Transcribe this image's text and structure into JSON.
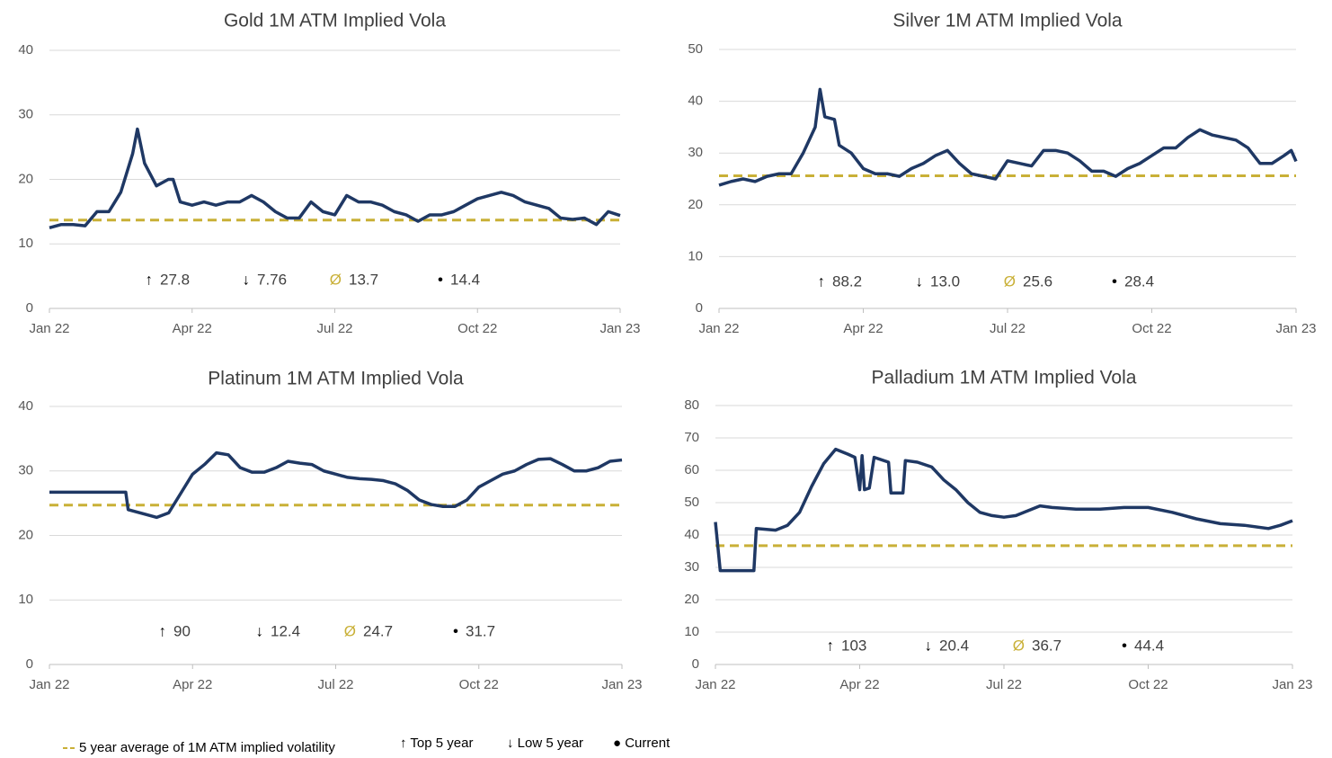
{
  "chart_data": [
    {
      "type": "line",
      "title": "Gold 1M ATM Implied Vola",
      "color": "#1f3864",
      "average_color": "#c9b037",
      "xlim": [
        0,
        12
      ],
      "xticks": [
        {
          "value": 0,
          "label": "Jan 22"
        },
        {
          "value": 3,
          "label": "Apr 22"
        },
        {
          "value": 6,
          "label": "Jul 22"
        },
        {
          "value": 9,
          "label": "Oct 22"
        },
        {
          "value": 12,
          "label": "Jan 23"
        }
      ],
      "ylim": [
        0,
        40
      ],
      "yticks": [
        0,
        10,
        20,
        30,
        40
      ],
      "grid": true,
      "x": [
        0,
        0.25,
        0.5,
        0.75,
        1,
        1.25,
        1.5,
        1.75,
        1.85,
        2,
        2.25,
        2.5,
        2.6,
        2.75,
        3,
        3.25,
        3.5,
        3.75,
        4,
        4.25,
        4.5,
        4.75,
        5,
        5.25,
        5.5,
        5.75,
        6,
        6.25,
        6.5,
        6.75,
        7,
        7.25,
        7.5,
        7.75,
        8,
        8.25,
        8.5,
        8.75,
        9,
        9.25,
        9.5,
        9.75,
        10,
        10.25,
        10.5,
        10.75,
        11,
        11.25,
        11.5,
        11.75,
        12
      ],
      "values": [
        12.5,
        13,
        13,
        12.8,
        15,
        15,
        18,
        24,
        27.8,
        22.5,
        19,
        20,
        20,
        16.5,
        16,
        16.5,
        16,
        16.5,
        16.5,
        17.5,
        16.5,
        15,
        14,
        14,
        16.5,
        15,
        14.5,
        17.5,
        16.5,
        16.5,
        16,
        15,
        14.5,
        13.5,
        14.5,
        14.5,
        15,
        16,
        17,
        17.5,
        18,
        17.5,
        16.5,
        16,
        15.5,
        14,
        13.8,
        14,
        13,
        15,
        14.4
      ],
      "stats": [
        27.8,
        7.76,
        13.7,
        14.4
      ],
      "stats_labels": [
        "27.8",
        "7.76",
        "13.7",
        "14.4"
      ]
    },
    {
      "type": "line",
      "title": "Silver 1M ATM Implied Vola",
      "color": "#1f3864",
      "average_color": "#c9b037",
      "xlim": [
        0,
        12
      ],
      "xticks": [
        {
          "value": 0,
          "label": "Jan 22"
        },
        {
          "value": 3,
          "label": "Apr 22"
        },
        {
          "value": 6,
          "label": "Jul 22"
        },
        {
          "value": 9,
          "label": "Oct 22"
        },
        {
          "value": 12,
          "label": "Jan 23"
        }
      ],
      "ylim": [
        0,
        50
      ],
      "yticks": [
        0,
        10,
        20,
        30,
        40,
        50
      ],
      "grid": true,
      "x": [
        0,
        0.25,
        0.5,
        0.75,
        1,
        1.25,
        1.5,
        1.75,
        2,
        2.1,
        2.2,
        2.4,
        2.5,
        2.75,
        3,
        3.25,
        3.5,
        3.75,
        4,
        4.25,
        4.5,
        4.75,
        5,
        5.25,
        5.5,
        5.75,
        6,
        6.25,
        6.5,
        6.75,
        7,
        7.25,
        7.5,
        7.75,
        8,
        8.25,
        8.5,
        8.75,
        9,
        9.25,
        9.5,
        9.75,
        10,
        10.25,
        10.5,
        10.75,
        11,
        11.25,
        11.5,
        11.75,
        11.9,
        12
      ],
      "values": [
        23.8,
        24.5,
        25,
        24.5,
        25.5,
        26,
        26,
        30,
        35,
        42.3,
        37,
        36.5,
        31.5,
        30,
        27,
        26,
        26,
        25.5,
        27,
        28,
        29.5,
        30.5,
        28,
        26,
        25.5,
        25,
        28.5,
        28,
        27.5,
        30.5,
        30.5,
        30,
        28.5,
        26.5,
        26.5,
        25.5,
        27,
        28,
        29.5,
        31,
        31,
        33,
        34.5,
        33.5,
        33,
        32.5,
        31,
        28,
        28,
        29.5,
        30.5,
        28.4
      ],
      "stats": [
        88.2,
        13.0,
        25.6,
        28.4
      ],
      "stats_labels": [
        "88.2",
        "13.0",
        "25.6",
        "28.4"
      ]
    },
    {
      "type": "line",
      "title": "Platinum 1M ATM Implied Vola",
      "color": "#1f3864",
      "average_color": "#c9b037",
      "xlim": [
        0,
        12
      ],
      "xticks": [
        {
          "value": 0,
          "label": "Jan 22"
        },
        {
          "value": 3,
          "label": "Apr 22"
        },
        {
          "value": 6,
          "label": "Jul 22"
        },
        {
          "value": 9,
          "label": "Oct 22"
        },
        {
          "value": 12,
          "label": "Jan 23"
        }
      ],
      "ylim": [
        0,
        40
      ],
      "yticks": [
        0,
        10,
        20,
        30,
        40
      ],
      "grid": true,
      "x": [
        0,
        1,
        1.6,
        1.65,
        2,
        2.25,
        2.5,
        2.75,
        3,
        3.25,
        3.5,
        3.75,
        4,
        4.25,
        4.5,
        4.75,
        5,
        5.25,
        5.5,
        5.75,
        6,
        6.25,
        6.5,
        6.75,
        7,
        7.25,
        7.5,
        7.75,
        8,
        8.25,
        8.5,
        8.75,
        9,
        9.25,
        9.5,
        9.75,
        10,
        10.25,
        10.5,
        10.75,
        11,
        11.25,
        11.5,
        11.75,
        12
      ],
      "values": [
        26.7,
        26.7,
        26.7,
        24,
        23.3,
        22.8,
        23.5,
        26.5,
        29.5,
        31,
        32.8,
        32.5,
        30.5,
        29.8,
        29.8,
        30.5,
        31.5,
        31.2,
        31,
        30,
        29.5,
        29,
        28.8,
        28.7,
        28.5,
        28,
        27,
        25.5,
        24.8,
        24.5,
        24.5,
        25.5,
        27.5,
        28.5,
        29.5,
        30,
        31,
        31.8,
        31.9,
        31,
        30,
        30,
        30.5,
        31.5,
        31.7
      ],
      "stats": [
        90,
        12.4,
        24.7,
        31.7
      ],
      "stats_labels": [
        "90",
        "12.4",
        "24.7",
        "31.7"
      ]
    },
    {
      "type": "line",
      "title": "Palladium 1M ATM Implied Vola",
      "color": "#1f3864",
      "average_color": "#c9b037",
      "xlim": [
        0,
        12
      ],
      "xticks": [
        {
          "value": 0,
          "label": "Jan 22"
        },
        {
          "value": 3,
          "label": "Apr 22"
        },
        {
          "value": 6,
          "label": "Jul 22"
        },
        {
          "value": 9,
          "label": "Oct 22"
        },
        {
          "value": 12,
          "label": "Jan 23"
        }
      ],
      "ylim": [
        0,
        80
      ],
      "yticks": [
        0,
        10,
        20,
        30,
        40,
        50,
        60,
        70,
        80
      ],
      "grid": true,
      "x": [
        0,
        0.1,
        0.8,
        0.85,
        1.25,
        1.5,
        1.75,
        2,
        2.25,
        2.5,
        2.75,
        2.9,
        3,
        3.05,
        3.1,
        3.2,
        3.3,
        3.6,
        3.65,
        3.9,
        3.95,
        4.2,
        4.5,
        4.75,
        5,
        5.25,
        5.5,
        5.75,
        6,
        6.25,
        6.5,
        6.75,
        7,
        7.5,
        8,
        8.5,
        9,
        9.5,
        10,
        10.5,
        11,
        11.5,
        11.75,
        12
      ],
      "values": [
        44,
        29,
        29,
        42,
        41.5,
        43,
        47,
        55,
        62,
        66.5,
        65,
        64,
        54,
        64.5,
        54,
        54.5,
        64,
        62.5,
        53,
        53,
        63,
        62.5,
        61,
        57,
        54,
        50,
        47,
        46,
        45.5,
        46,
        47.5,
        49,
        48.5,
        48,
        48,
        48.5,
        48.5,
        47,
        45,
        43.5,
        43,
        42,
        43,
        44.4
      ],
      "stats": [
        103,
        20.4,
        36.7,
        44.4
      ],
      "stats_labels": [
        "103",
        "20.4",
        "36.7",
        "44.4"
      ]
    }
  ],
  "stat_symbols": [
    "↑",
    "↓",
    "Ø",
    "•"
  ],
  "legend": {
    "average": "5 year average of 1M ATM implied volatility",
    "top": "↑ Top 5 year",
    "low": "↓ Low 5 year",
    "current": "● Current"
  }
}
